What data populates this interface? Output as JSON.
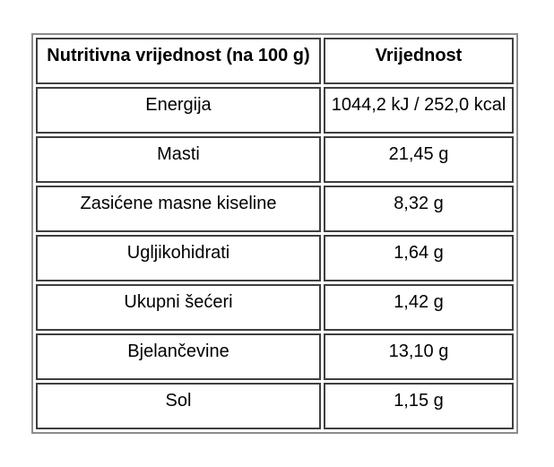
{
  "table": {
    "headers": [
      "Nutritivna vrijednost (na 100 g)",
      "Vrijednost"
    ],
    "rows": [
      {
        "label": "Energija",
        "value": "1044,2 kJ / 252,0 kcal"
      },
      {
        "label": "Masti",
        "value": "21,45 g"
      },
      {
        "label": "Zasićene masne kiseline",
        "value": "8,32 g"
      },
      {
        "label": "Ugljikohidrati",
        "value": "1,64 g"
      },
      {
        "label": "Ukupni šećeri",
        "value": "1,42 g"
      },
      {
        "label": "Bjelančevine",
        "value": "13,10 g"
      },
      {
        "label": "Sol",
        "value": "1,15 g"
      }
    ]
  },
  "colors": {
    "outer_border": "#8c8c8c",
    "cell_border": "#3f3f3f",
    "text": "#000000",
    "background": "#ffffff"
  }
}
